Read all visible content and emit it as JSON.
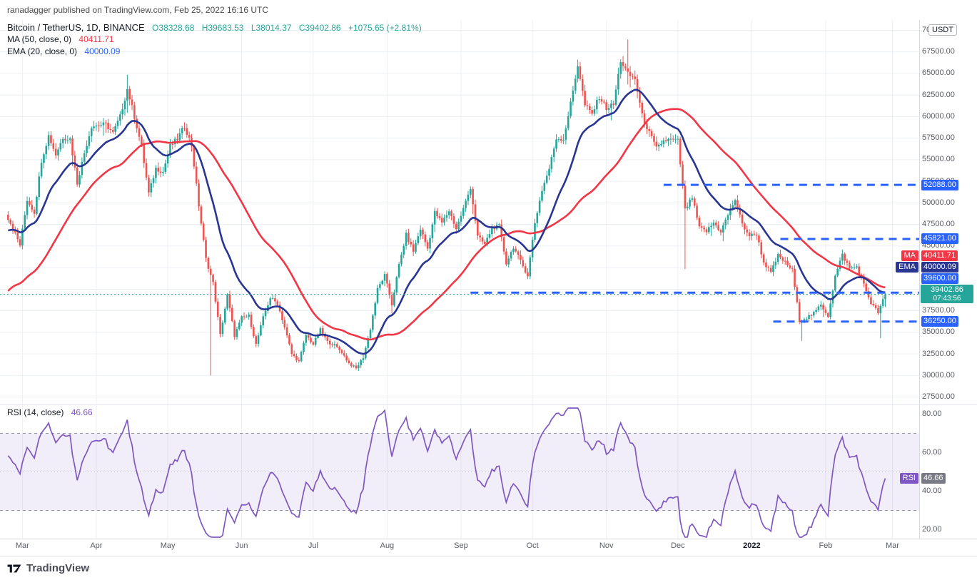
{
  "meta": {
    "publish_line": "ranadagger published on TradingView.com, Feb 25, 2022 16:16 UTC"
  },
  "header": {
    "symbol_line": "Bitcoin / TetherUS, 1D, BINANCE",
    "open": "O38328.68",
    "high": "H39683.53",
    "low": "L38014.37",
    "close": "C39402.86",
    "change": "+1075.65 (+2.81%)",
    "ma_label": "MA (50, close, 0)",
    "ma_value": "40411.71",
    "ema_label": "EMA (20, close, 0)",
    "ema_value": "40000.09"
  },
  "rsi_legend": {
    "label": "RSI (14, close)",
    "value": "46.66"
  },
  "footer": {
    "brand": "TradingView"
  },
  "chart_data": {
    "type": "candlestick",
    "title": "Bitcoin / TetherUS, 1D, BINANCE",
    "ohlc": {
      "open": 38328.68,
      "high": 39683.53,
      "low": 38014.37,
      "close": 39402.86,
      "change": 1075.65,
      "change_pct": 2.81
    },
    "colors": {
      "up": "#26a69a",
      "down": "#ef5350",
      "ma": "#f23645",
      "ema": "#283593",
      "rsi": "#7e57c2",
      "level_line": "#2962ff",
      "last_price": "#26a69a",
      "grid": "#eceff3",
      "axis": "#d6d9de"
    },
    "y_axis": {
      "unit": "USDT",
      "min": 27500,
      "max": 70000,
      "step": 2500,
      "visible_range": [
        26800,
        71200
      ]
    },
    "x_months": [
      {
        "label": "Mar",
        "date": "2021-03-01"
      },
      {
        "label": "Apr",
        "date": "2021-04-01"
      },
      {
        "label": "May",
        "date": "2021-05-01"
      },
      {
        "label": "Jun",
        "date": "2021-06-01"
      },
      {
        "label": "Jul",
        "date": "2021-07-01"
      },
      {
        "label": "Aug",
        "date": "2021-08-01"
      },
      {
        "label": "Sep",
        "date": "2021-09-01"
      },
      {
        "label": "Oct",
        "date": "2021-10-01"
      },
      {
        "label": "Nov",
        "date": "2021-11-01"
      },
      {
        "label": "Dec",
        "date": "2021-12-01"
      },
      {
        "label": "2022",
        "date": "2022-01-01",
        "major": true
      },
      {
        "label": "Feb",
        "date": "2022-02-01"
      },
      {
        "label": "Mar",
        "date": "2022-03-01"
      }
    ],
    "series": {
      "pre_start_date": "2021-01-05",
      "start_date": "2021-02-25",
      "step_days": 3,
      "pre_closes": [
        34000,
        40600,
        35400,
        39200,
        35800,
        35500,
        32100,
        32500,
        34300,
        33500,
        36900,
        38900,
        44800,
        47200,
        49200,
        55900,
        48800
      ],
      "closes": [
        47100,
        45100,
        50350,
        48900,
        54900,
        57800,
        55600,
        57600,
        57400,
        52300,
        55800,
        58900,
        59000,
        59100,
        58100,
        60000,
        63200,
        60000,
        56500,
        51100,
        54000,
        53600,
        56600,
        57400,
        58900,
        56700,
        49700,
        43500,
        40700,
        34700,
        39300,
        34600,
        36700,
        36900,
        33600,
        36700,
        39000,
        38350,
        35600,
        32500,
        31600,
        34700,
        33600,
        35300,
        33900,
        33500,
        32700,
        31400,
        30800,
        32100,
        35400,
        40000,
        41600,
        38200,
        42800,
        46300,
        44400,
        47000,
        44700,
        48900,
        47700,
        49100,
        47000,
        49300,
        51800,
        46100,
        45200,
        47100,
        47300,
        43000,
        44900,
        43200,
        41600,
        47700,
        51500,
        53970,
        57500,
        57400,
        61500,
        66000,
        61300,
        60300,
        62300,
        61000,
        61400,
        66500,
        64900,
        64400,
        60100,
        58100,
        56300,
        57200,
        57300,
        57200,
        49200,
        50600,
        47100,
        46700,
        47700,
        46700,
        48600,
        50400,
        47500,
        46200,
        46400,
        43100,
        41900,
        43900,
        43100,
        42200,
        36400,
        36700,
        37200,
        38200,
        36900,
        41500,
        44000,
        42400,
        42600,
        40500,
        38400,
        37300,
        39402.86
      ]
    },
    "wick_overrides": {
      "highs": [
        {
          "date": "2021-04-14",
          "high": 64854
        },
        {
          "date": "2021-11-10",
          "high": 68950
        }
      ],
      "lows": [
        {
          "date": "2021-05-19",
          "low": 30000
        },
        {
          "date": "2021-12-04",
          "low": 42333
        },
        {
          "date": "2022-01-22",
          "low": 34008
        },
        {
          "date": "2022-02-24",
          "low": 34322
        }
      ]
    },
    "indicators": {
      "ma": {
        "tag": "MA",
        "period": 50,
        "source": "close",
        "offset": 0,
        "last": 40411.71,
        "color": "#f23645"
      },
      "ema": {
        "tag": "EMA",
        "period": 20,
        "source": "close",
        "offset": 0,
        "last": 40000.09,
        "color": "#283593"
      },
      "rsi": {
        "tag": "RSI",
        "period": 14,
        "source": "close",
        "last": 46.66,
        "color": "#7e57c2",
        "upper_band": 70,
        "lower_band": 30,
        "middle": 50,
        "y_ticks": [
          80,
          60,
          40,
          20
        ],
        "value_chip_color": "#787b86"
      }
    },
    "price_lines": [
      {
        "price": 52088,
        "label": "52088.00",
        "start_date": "2021-11-25",
        "color": "#2962ff"
      },
      {
        "price": 45821,
        "label": "45821.00",
        "start_date": "2022-01-13",
        "color": "#2962ff"
      },
      {
        "price": 39600,
        "label": "39600.00",
        "start_date": "2021-09-05",
        "color": "#2962ff"
      },
      {
        "price": 36250,
        "label": "36250.00",
        "start_date": "2022-01-10",
        "color": "#2962ff"
      }
    ],
    "last_price": {
      "value": 39402.86,
      "label": "39402.86",
      "countdown": "07:43:56",
      "color": "#26a69a"
    }
  }
}
